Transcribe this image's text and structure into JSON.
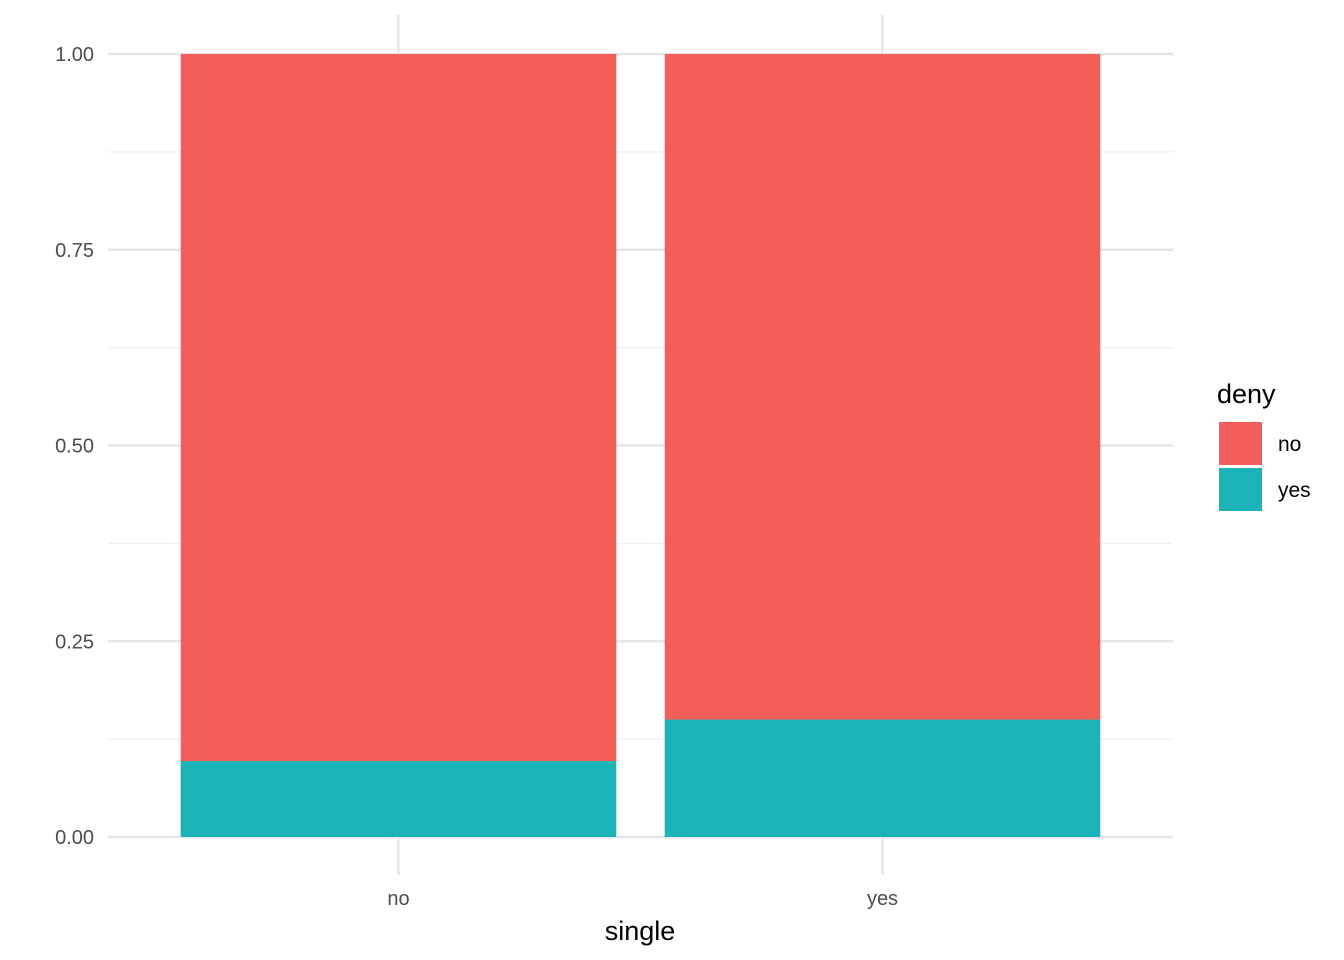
{
  "chart_data": {
    "type": "bar",
    "stacked": true,
    "position": "fill",
    "xlabel": "single",
    "ylabel": "",
    "categories": [
      "no",
      "yes"
    ],
    "series": [
      {
        "name": "no",
        "color": "#F35E5A",
        "values": [
          0.903,
          0.85
        ]
      },
      {
        "name": "yes",
        "color": "#19B3B8",
        "values": [
          0.097,
          0.15
        ]
      }
    ],
    "ylim": [
      0,
      1
    ],
    "yticks": [
      0,
      0.25,
      0.5,
      0.75,
      1.0
    ],
    "ytick_labels": [
      "0.00",
      "0.25",
      "0.50",
      "0.75",
      "1.00"
    ],
    "grid": true,
    "legend": {
      "title": "deny",
      "placement": "right",
      "entries": [
        "no",
        "yes"
      ]
    },
    "colors": {
      "grid_major": "#E5E5E5",
      "grid_minor": "#F0F0F0",
      "tick_text": "#4D4D4D"
    }
  }
}
